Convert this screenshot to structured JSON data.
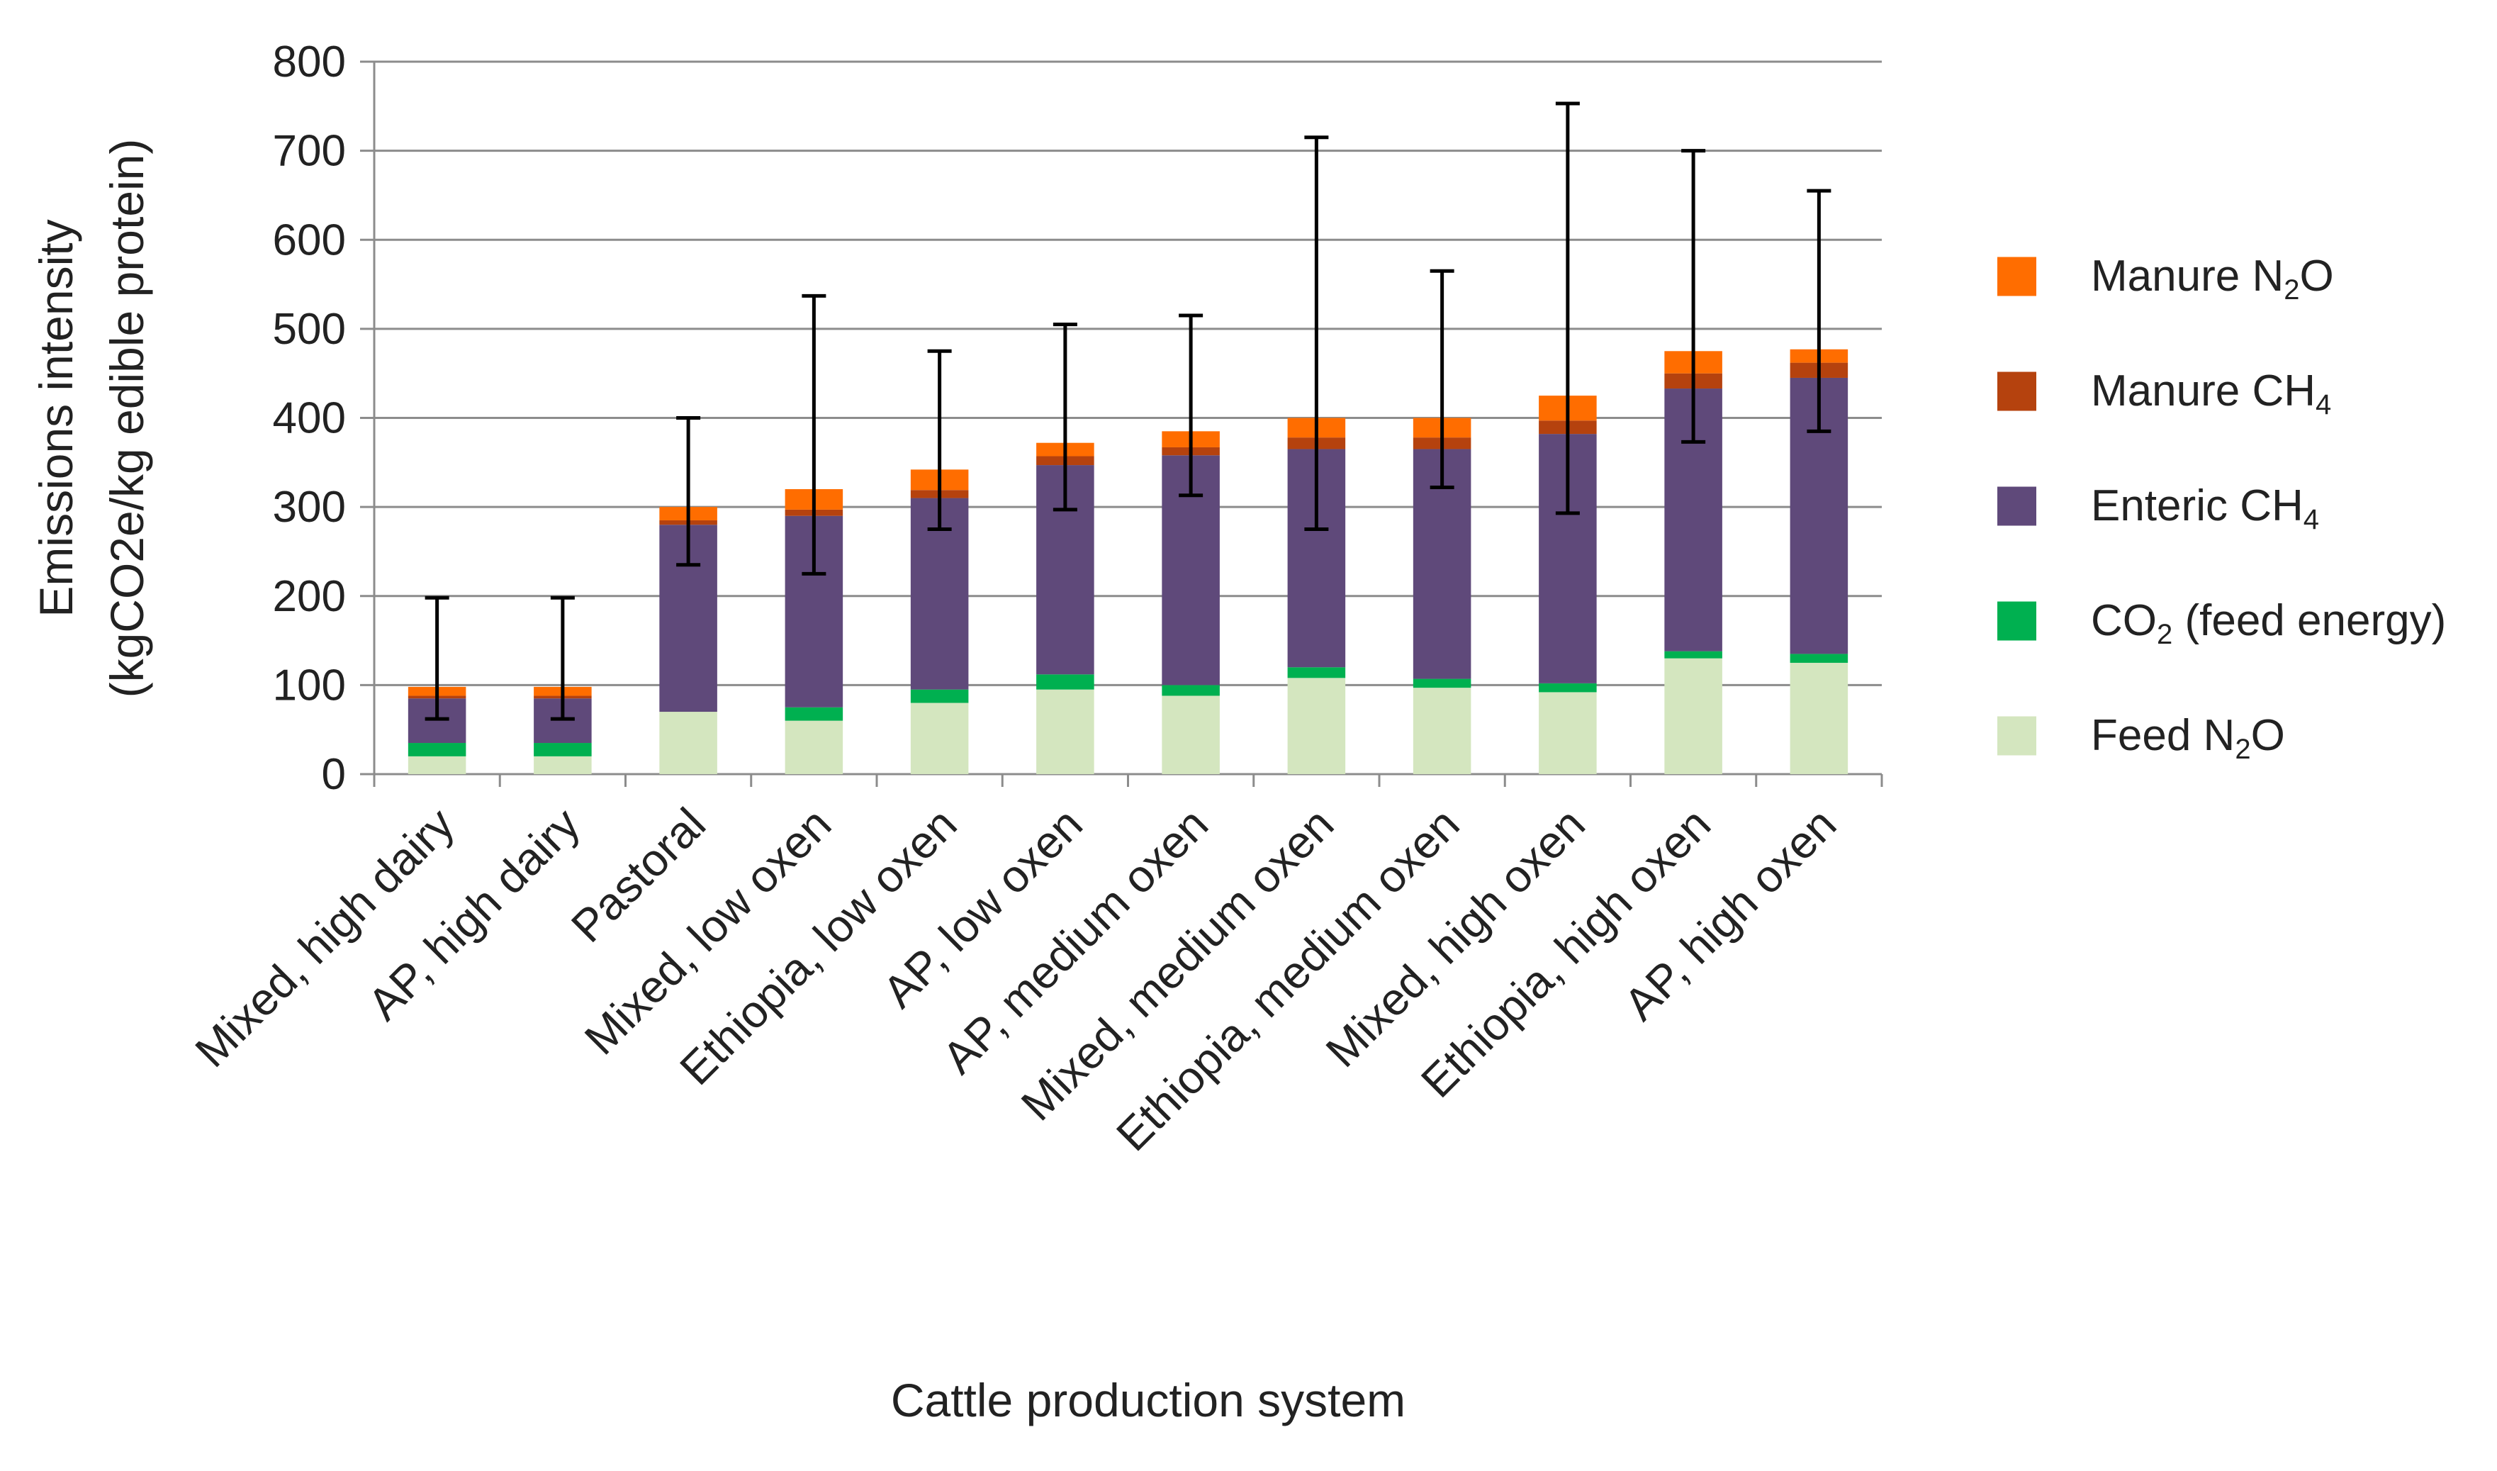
{
  "chart_data": {
    "type": "bar",
    "stacked": true,
    "title": "",
    "xlabel": "Cattle production system",
    "ylabel_lines": [
      "Emissions intensity",
      "(kgCO2e/kg edible protein)"
    ],
    "ylim": [
      0,
      800
    ],
    "yticks": [
      0,
      100,
      200,
      300,
      400,
      500,
      600,
      700,
      800
    ],
    "grid": true,
    "legend_position": "right",
    "categories": [
      "Mixed, high dairy",
      "AP, high dairy",
      "Pastoral",
      "Mixed, low oxen",
      "Ethiopia, low oxen",
      "AP, low oxen",
      "AP, medium oxen",
      "Mixed, medium oxen",
      "Ethiopia, medium oxen",
      "Mixed, high oxen",
      "Ethiopia, high oxen",
      "AP, high oxen"
    ],
    "series": [
      {
        "name": "Feed N2O",
        "label_main": "Feed N",
        "label_sub": "2",
        "label_tail": "O",
        "color": "#d4e6bf",
        "values": [
          20,
          20,
          70,
          60,
          80,
          95,
          88,
          108,
          97,
          92,
          130,
          125
        ]
      },
      {
        "name": "CO2 (feed energy)",
        "label_main": "CO",
        "label_sub": "2",
        "label_tail": " (feed energy)",
        "color": "#00b050",
        "values": [
          15,
          15,
          0,
          15,
          15,
          17,
          12,
          12,
          10,
          10,
          8,
          10
        ]
      },
      {
        "name": "Enteric CH4",
        "label_main": "Enteric CH",
        "label_sub": "4",
        "label_tail": "",
        "color": "#5f497a",
        "values": [
          50,
          50,
          210,
          215,
          215,
          235,
          258,
          245,
          258,
          280,
          295,
          310
        ]
      },
      {
        "name": "Manure CH4",
        "label_main": "Manure CH",
        "label_sub": "4",
        "label_tail": "",
        "color": "#b5420e",
        "values": [
          3,
          3,
          5,
          7,
          9,
          10,
          9,
          13,
          13,
          15,
          17,
          17
        ]
      },
      {
        "name": "Manure N2O",
        "label_main": "Manure N",
        "label_sub": "2",
        "label_tail": "O",
        "color": "#ff6d00",
        "values": [
          10,
          10,
          15,
          23,
          23,
          15,
          18,
          22,
          22,
          28,
          25,
          15
        ]
      }
    ],
    "error_bars": [
      {
        "low": 62,
        "high": 198
      },
      {
        "low": 62,
        "high": 198
      },
      {
        "low": 235,
        "high": 400
      },
      {
        "low": 225,
        "high": 537
      },
      {
        "low": 275,
        "high": 475
      },
      {
        "low": 297,
        "high": 505
      },
      {
        "low": 313,
        "high": 515
      },
      {
        "low": 275,
        "high": 715
      },
      {
        "low": 322,
        "high": 565
      },
      {
        "low": 293,
        "high": 753
      },
      {
        "low": 373,
        "high": 700
      },
      {
        "low": 385,
        "high": 655
      }
    ],
    "legend_order": [
      "Manure N2O",
      "Manure CH4",
      "Enteric CH4",
      "CO2 (feed energy)",
      "Feed N2O"
    ]
  }
}
